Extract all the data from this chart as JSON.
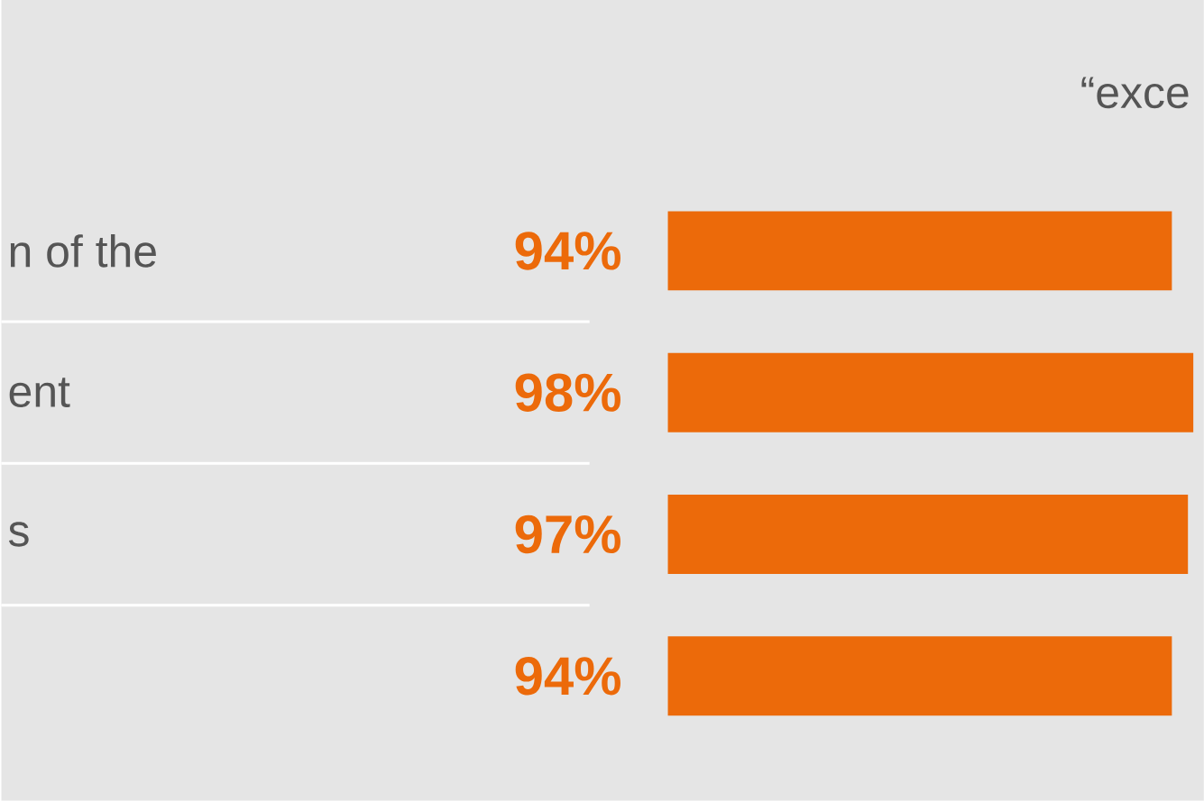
{
  "chart_data": {
    "type": "bar",
    "orientation": "horizontal",
    "categories": [
      "n of the",
      "ent",
      "s",
      null
    ],
    "values": [
      94,
      98,
      97,
      94
    ],
    "value_labels": [
      "94%",
      "98%",
      "97%",
      "94%"
    ],
    "color": "#ec6a0a",
    "tick_labels": "y",
    "annotations": [
      "“exce"
    ]
  }
}
